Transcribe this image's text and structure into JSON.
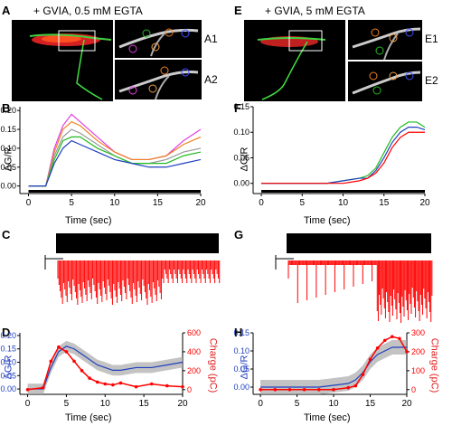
{
  "left": {
    "title": "+ GVIA, 0.5 mM EGTA",
    "labels": {
      "a": "A",
      "b": "B",
      "c": "C",
      "d": "D"
    },
    "insets": [
      "A1",
      "A2"
    ]
  },
  "right": {
    "title": "+ GVIA, 5 mM EGTA",
    "labels": {
      "e": "E",
      "f": "F",
      "g": "G",
      "h": "H"
    },
    "insets": [
      "E1",
      "E2"
    ]
  },
  "axes": {
    "time_label": "Time (sec)",
    "dgr_label": "ΔG/R",
    "charge_label": "Charge (pC)"
  },
  "colors": {
    "red": "#ff0000",
    "blue": "#1f3fbf",
    "gray": "#999999",
    "green": "#22bb22",
    "magenta": "#e040e0",
    "orange": "#f08020"
  },
  "chart_data": [
    {
      "type": "line",
      "panel": "B",
      "x": [
        0,
        2,
        3,
        4,
        5,
        6,
        8,
        10,
        12,
        14,
        16,
        18,
        20
      ],
      "series": [
        {
          "values": [
            0.0,
            0.0,
            0.1,
            0.16,
            0.19,
            0.17,
            0.13,
            0.09,
            0.07,
            0.07,
            0.08,
            0.12,
            0.15
          ]
        },
        {
          "values": [
            0.0,
            0.0,
            0.09,
            0.15,
            0.17,
            0.16,
            0.12,
            0.09,
            0.07,
            0.07,
            0.08,
            0.11,
            0.13
          ]
        },
        {
          "values": [
            0.0,
            0.0,
            0.08,
            0.13,
            0.15,
            0.14,
            0.11,
            0.08,
            0.06,
            0.06,
            0.07,
            0.09,
            0.1
          ]
        },
        {
          "values": [
            0.0,
            0.0,
            0.07,
            0.12,
            0.13,
            0.13,
            0.1,
            0.08,
            0.06,
            0.06,
            0.06,
            0.08,
            0.09
          ]
        },
        {
          "values": [
            0.0,
            0.0,
            0.06,
            0.1,
            0.12,
            0.11,
            0.09,
            0.07,
            0.06,
            0.05,
            0.05,
            0.06,
            0.07
          ]
        }
      ],
      "xticks": [
        0,
        5,
        10,
        15,
        20
      ],
      "yticks": [
        0.0,
        0.05,
        0.1,
        0.15,
        0.2
      ],
      "xlim": [
        -1,
        20
      ],
      "ylim": [
        -0.02,
        0.21
      ]
    },
    {
      "type": "line",
      "panel": "F",
      "x": [
        0,
        2,
        4,
        6,
        8,
        10,
        12,
        13,
        14,
        15,
        16,
        17,
        18,
        19,
        20
      ],
      "series": [
        {
          "values": [
            0.0,
            0.0,
            0.0,
            0.0,
            0.0,
            0.005,
            0.01,
            0.015,
            0.03,
            0.06,
            0.09,
            0.11,
            0.12,
            0.12,
            0.11
          ]
        },
        {
          "values": [
            0.0,
            0.0,
            0.0,
            0.0,
            0.0,
            0.005,
            0.01,
            0.01,
            0.025,
            0.05,
            0.08,
            0.1,
            0.11,
            0.11,
            0.105
          ]
        },
        {
          "values": [
            0.0,
            0.0,
            0.0,
            0.0,
            0.0,
            0.0,
            0.005,
            0.01,
            0.02,
            0.04,
            0.07,
            0.09,
            0.1,
            0.1,
            0.1
          ]
        }
      ],
      "xticks": [
        0,
        5,
        10,
        15,
        20
      ],
      "yticks": [
        0.0,
        0.05,
        0.1,
        0.15
      ],
      "xlim": [
        -1,
        20
      ],
      "ylim": [
        -0.02,
        0.15
      ]
    },
    {
      "type": "line",
      "panel": "D",
      "x": [
        0,
        2,
        3,
        4,
        5,
        6,
        7,
        8,
        9,
        10,
        11,
        12,
        14,
        16,
        18,
        20
      ],
      "series": [
        {
          "values": [
            0.0,
            0.0,
            0.08,
            0.14,
            0.16,
            0.15,
            0.13,
            0.11,
            0.09,
            0.08,
            0.07,
            0.07,
            0.08,
            0.08,
            0.09,
            0.1
          ]
        },
        {
          "values": [
            0,
            20,
            300,
            450,
            400,
            300,
            200,
            120,
            80,
            60,
            50,
            70,
            30,
            60,
            40,
            30
          ]
        }
      ],
      "xticks": [
        0,
        5,
        10,
        15,
        20
      ],
      "yticks": [
        0.0,
        0.05,
        0.1,
        0.15,
        0.2
      ],
      "y2ticks": [
        0,
        200,
        400,
        600
      ],
      "xlim": [
        -1,
        20
      ],
      "ylim": [
        -0.02,
        0.21
      ],
      "y2lim": [
        -50,
        600
      ]
    },
    {
      "type": "line",
      "panel": "H",
      "x": [
        0,
        2,
        4,
        6,
        8,
        10,
        12,
        13,
        14,
        15,
        16,
        17,
        18,
        19,
        20
      ],
      "series": [
        {
          "values": [
            0.0,
            0.0,
            0.0,
            0.0,
            0.0,
            0.005,
            0.01,
            0.02,
            0.04,
            0.07,
            0.09,
            0.1,
            0.11,
            0.11,
            0.11
          ]
        },
        {
          "values": [
            0,
            0,
            0,
            0,
            0,
            0,
            10,
            20,
            80,
            160,
            220,
            260,
            280,
            270,
            200
          ]
        }
      ],
      "xticks": [
        0,
        5,
        10,
        15,
        20
      ],
      "yticks": [
        0.0,
        0.05,
        0.1,
        0.15
      ],
      "y2ticks": [
        0,
        100,
        200,
        300
      ],
      "xlim": [
        -1,
        20
      ],
      "ylim": [
        -0.02,
        0.15
      ],
      "y2lim": [
        -25,
        300
      ]
    }
  ]
}
